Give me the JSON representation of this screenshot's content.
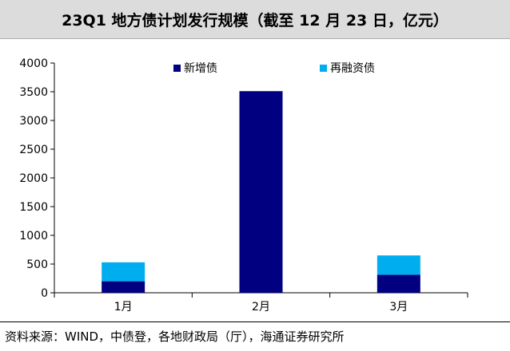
{
  "header": {
    "title": "23Q1 地方债计划发行规模（截至 12 月 23 日，亿元）"
  },
  "footer": {
    "source": "资料来源：WIND，中债登，各地财政局（厅），海通证券研究所"
  },
  "chart_data": {
    "type": "bar",
    "stacked": true,
    "categories": [
      "1月",
      "2月",
      "3月"
    ],
    "series": [
      {
        "name": "新增债",
        "values": [
          200,
          3510,
          315
        ],
        "color": "#000080"
      },
      {
        "name": "再融资债",
        "values": [
          330,
          0,
          335
        ],
        "color": "#00aeef"
      }
    ],
    "ylim": [
      0,
      4000
    ],
    "yticks": [
      0,
      500,
      1000,
      1500,
      2000,
      2500,
      3000,
      3500,
      4000
    ],
    "grid": false,
    "legend_position": "top"
  }
}
